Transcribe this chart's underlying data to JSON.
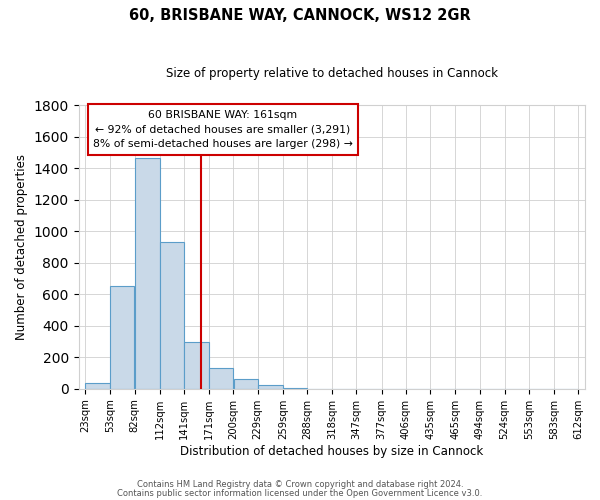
{
  "title": "60, BRISBANE WAY, CANNOCK, WS12 2GR",
  "subtitle": "Size of property relative to detached houses in Cannock",
  "xlabel": "Distribution of detached houses by size in Cannock",
  "ylabel": "Number of detached properties",
  "bar_left_edges": [
    23,
    53,
    82,
    112,
    141,
    171,
    200,
    229,
    259,
    288,
    318,
    347,
    377,
    406,
    435,
    465,
    494,
    524,
    553,
    583
  ],
  "bar_widths": [
    30,
    29,
    30,
    29,
    30,
    29,
    29,
    30,
    29,
    30,
    29,
    30,
    29,
    29,
    30,
    29,
    30,
    29,
    30,
    29
  ],
  "bar_heights": [
    40,
    650,
    1465,
    935,
    295,
    130,
    65,
    25,
    5,
    0,
    0,
    0,
    0,
    0,
    0,
    0,
    0,
    0,
    0,
    0
  ],
  "tick_labels": [
    "23sqm",
    "53sqm",
    "82sqm",
    "112sqm",
    "141sqm",
    "171sqm",
    "200sqm",
    "229sqm",
    "259sqm",
    "288sqm",
    "318sqm",
    "347sqm",
    "377sqm",
    "406sqm",
    "435sqm",
    "465sqm",
    "494sqm",
    "524sqm",
    "553sqm",
    "583sqm",
    "612sqm"
  ],
  "tick_positions": [
    23,
    53,
    82,
    112,
    141,
    171,
    200,
    229,
    259,
    288,
    318,
    347,
    377,
    406,
    435,
    465,
    494,
    524,
    553,
    583,
    612
  ],
  "bar_color": "#c9d9e8",
  "bar_edge_color": "#5b9dc9",
  "vline_x": 161,
  "vline_color": "#cc0000",
  "ylim": [
    0,
    1800
  ],
  "yticks": [
    0,
    200,
    400,
    600,
    800,
    1000,
    1200,
    1400,
    1600,
    1800
  ],
  "annotation_line1": "60 BRISBANE WAY: 161sqm",
  "annotation_line2": "← 92% of detached houses are smaller (3,291)",
  "annotation_line3": "8% of semi-detached houses are larger (298) →",
  "footer_line1": "Contains HM Land Registry data © Crown copyright and database right 2024.",
  "footer_line2": "Contains public sector information licensed under the Open Government Licence v3.0.",
  "background_color": "#ffffff",
  "grid_color": "#d0d0d0"
}
